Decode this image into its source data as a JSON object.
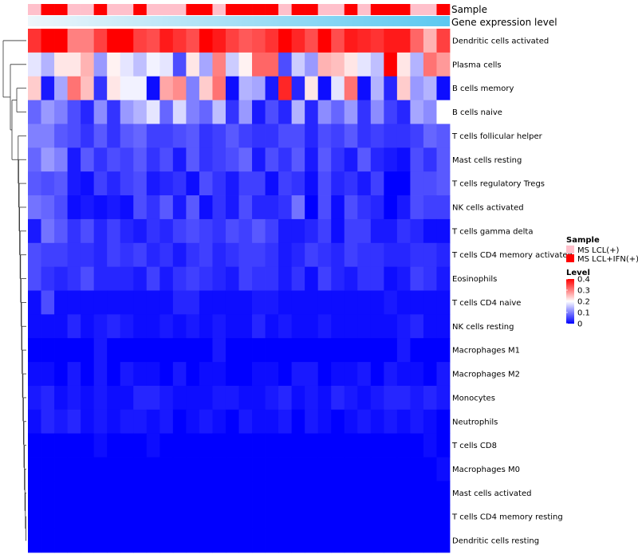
{
  "chart_data": {
    "type": "heatmap",
    "title": "",
    "annotation_labels": [
      "Sample",
      "Gene expression level"
    ],
    "rows": [
      "Dendritic cells activated",
      "Plasma cells",
      "B cells memory",
      "B cells naive",
      "T cells follicular helper",
      "Mast cells resting",
      "T cells regulatory  Tregs",
      "NK cells activated",
      "T cells gamma delta",
      "T cells CD4 memory activated",
      "Eosinophils",
      "T cells CD4 naive",
      "NK cells resting",
      "Macrophages M1",
      "Macrophages M2",
      "Monocytes",
      "Neutrophils",
      "T cells CD8",
      "Macrophages M0",
      "Mast cells activated",
      "T cells CD4 memory resting",
      "Dendritic cells resting"
    ],
    "sample_groups": [
      "lcl",
      "ifn",
      "ifn",
      "lcl",
      "lcl",
      "ifn",
      "lcl",
      "lcl",
      "ifn",
      "lcl",
      "lcl",
      "lcl",
      "ifn",
      "ifn",
      "lcl",
      "ifn",
      "ifn",
      "ifn",
      "ifn",
      "lcl",
      "ifn",
      "ifn",
      "lcl",
      "lcl",
      "ifn",
      "lcl",
      "ifn",
      "ifn",
      "ifn",
      "lcl",
      "lcl",
      "ifn"
    ],
    "values": [
      [
        0.36,
        0.4,
        0.4,
        0.3,
        0.3,
        0.35,
        0.4,
        0.4,
        0.35,
        0.34,
        0.38,
        0.36,
        0.34,
        0.4,
        0.38,
        0.35,
        0.33,
        0.34,
        0.36,
        0.4,
        0.37,
        0.34,
        0.4,
        0.34,
        0.38,
        0.37,
        0.36,
        0.38,
        0.38,
        0.32,
        0.26,
        0.35
      ],
      [
        0.18,
        0.14,
        0.22,
        0.22,
        0.26,
        0.12,
        0.21,
        0.18,
        0.15,
        0.19,
        0.18,
        0.06,
        0.22,
        0.13,
        0.3,
        0.16,
        0.21,
        0.32,
        0.32,
        0.06,
        0.16,
        0.12,
        0.26,
        0.25,
        0.22,
        0.18,
        0.15,
        0.4,
        0.22,
        0.14,
        0.31,
        0.28
      ],
      [
        0.24,
        0.02,
        0.13,
        0.31,
        0.25,
        0.04,
        0.22,
        0.19,
        0.19,
        0.01,
        0.27,
        0.29,
        0.1,
        0.24,
        0.31,
        0.01,
        0.14,
        0.13,
        0.02,
        0.37,
        0.03,
        0.22,
        0.01,
        0.18,
        0.31,
        0.01,
        0.14,
        0.03,
        0.24,
        0.12,
        0.14,
        0.01
      ],
      [
        0.08,
        0.12,
        0.1,
        0.06,
        0.03,
        0.11,
        0.04,
        0.12,
        0.14,
        0.18,
        0.08,
        0.17,
        0.1,
        0.08,
        0.15,
        0.04,
        0.12,
        0.02,
        0.06,
        0.03,
        0.14,
        0.03,
        0.11,
        0.08,
        0.12,
        0.04,
        0.11,
        0.05,
        0.03,
        0.13,
        0.11,
        0.2
      ],
      [
        0.1,
        0.1,
        0.07,
        0.06,
        0.04,
        0.07,
        0.04,
        0.07,
        0.08,
        0.05,
        0.05,
        0.06,
        0.07,
        0.04,
        0.05,
        0.07,
        0.05,
        0.04,
        0.04,
        0.06,
        0.06,
        0.03,
        0.06,
        0.05,
        0.07,
        0.04,
        0.05,
        0.04,
        0.04,
        0.05,
        0.08,
        0.07
      ],
      [
        0.08,
        0.12,
        0.1,
        0.02,
        0.07,
        0.04,
        0.06,
        0.05,
        0.07,
        0.04,
        0.06,
        0.02,
        0.07,
        0.04,
        0.05,
        0.06,
        0.08,
        0.02,
        0.06,
        0.04,
        0.07,
        0.02,
        0.07,
        0.04,
        0.02,
        0.07,
        0.03,
        0.02,
        0.01,
        0.06,
        0.04,
        0.07
      ],
      [
        0.07,
        0.06,
        0.07,
        0.02,
        0.01,
        0.05,
        0.03,
        0.05,
        0.06,
        0.02,
        0.03,
        0.04,
        0.01,
        0.06,
        0.04,
        0.02,
        0.05,
        0.05,
        0.01,
        0.05,
        0.04,
        0.01,
        0.06,
        0.03,
        0.04,
        0.02,
        0.05,
        0.0,
        0.0,
        0.06,
        0.06,
        0.07
      ],
      [
        0.09,
        0.08,
        0.06,
        0.01,
        0.02,
        0.01,
        0.02,
        0.01,
        0.06,
        0.04,
        0.07,
        0.02,
        0.07,
        0.01,
        0.04,
        0.02,
        0.06,
        0.03,
        0.03,
        0.04,
        0.09,
        0.0,
        0.06,
        0.01,
        0.06,
        0.04,
        0.03,
        0.0,
        0.02,
        0.06,
        0.05,
        0.05
      ],
      [
        0.02,
        0.09,
        0.07,
        0.04,
        0.06,
        0.03,
        0.05,
        0.03,
        0.02,
        0.04,
        0.03,
        0.05,
        0.06,
        0.05,
        0.04,
        0.06,
        0.05,
        0.07,
        0.05,
        0.02,
        0.02,
        0.03,
        0.05,
        0.01,
        0.05,
        0.05,
        0.02,
        0.02,
        0.04,
        0.03,
        0.01,
        0.01
      ],
      [
        0.06,
        0.05,
        0.05,
        0.04,
        0.04,
        0.03,
        0.05,
        0.04,
        0.05,
        0.03,
        0.04,
        0.02,
        0.04,
        0.05,
        0.03,
        0.04,
        0.05,
        0.05,
        0.04,
        0.02,
        0.03,
        0.05,
        0.04,
        0.03,
        0.05,
        0.04,
        0.04,
        0.03,
        0.03,
        0.04,
        0.04,
        0.03
      ],
      [
        0.06,
        0.04,
        0.03,
        0.04,
        0.06,
        0.03,
        0.03,
        0.03,
        0.02,
        0.05,
        0.02,
        0.04,
        0.05,
        0.04,
        0.03,
        0.02,
        0.05,
        0.04,
        0.04,
        0.02,
        0.04,
        0.01,
        0.05,
        0.03,
        0.02,
        0.04,
        0.04,
        0.01,
        0.02,
        0.05,
        0.04,
        0.02
      ],
      [
        0.01,
        0.06,
        0.01,
        0.01,
        0.01,
        0.01,
        0.01,
        0.01,
        0.01,
        0.01,
        0.01,
        0.03,
        0.03,
        0.01,
        0.01,
        0.01,
        0.01,
        0.02,
        0.02,
        0.01,
        0.01,
        0.01,
        0.01,
        0.01,
        0.01,
        0.01,
        0.01,
        0.02,
        0.01,
        0.01,
        0.01,
        0.01
      ],
      [
        0.01,
        0.01,
        0.01,
        0.03,
        0.01,
        0.02,
        0.03,
        0.02,
        0.01,
        0.01,
        0.02,
        0.01,
        0.02,
        0.01,
        0.02,
        0.01,
        0.01,
        0.03,
        0.01,
        0.02,
        0.01,
        0.01,
        0.02,
        0.01,
        0.01,
        0.01,
        0.01,
        0.01,
        0.02,
        0.03,
        0.01,
        0.01
      ],
      [
        0.0,
        0.0,
        0.0,
        0.0,
        0.0,
        0.02,
        0.0,
        0.0,
        0.0,
        0.0,
        0.0,
        0.0,
        0.0,
        0.0,
        0.02,
        0.0,
        0.0,
        0.0,
        0.0,
        0.0,
        0.0,
        0.0,
        0.0,
        0.0,
        0.0,
        0.0,
        0.0,
        0.0,
        0.02,
        0.0,
        0.0,
        0.0
      ],
      [
        0.01,
        0.01,
        0.0,
        0.02,
        0.0,
        0.02,
        0.0,
        0.02,
        0.01,
        0.01,
        0.0,
        0.02,
        0.0,
        0.01,
        0.01,
        0.0,
        0.0,
        0.01,
        0.01,
        0.0,
        0.02,
        0.02,
        0.0,
        0.01,
        0.01,
        0.02,
        0.0,
        0.02,
        0.01,
        0.01,
        0.0,
        0.02
      ],
      [
        0.02,
        0.03,
        0.01,
        0.02,
        0.01,
        0.02,
        0.01,
        0.01,
        0.03,
        0.03,
        0.02,
        0.01,
        0.01,
        0.01,
        0.02,
        0.02,
        0.01,
        0.01,
        0.02,
        0.03,
        0.01,
        0.02,
        0.01,
        0.03,
        0.02,
        0.01,
        0.02,
        0.03,
        0.03,
        0.02,
        0.03,
        0.02
      ],
      [
        0.01,
        0.03,
        0.02,
        0.03,
        0.01,
        0.02,
        0.01,
        0.02,
        0.02,
        0.01,
        0.02,
        0.0,
        0.01,
        0.02,
        0.01,
        0.0,
        0.02,
        0.01,
        0.01,
        0.02,
        0.0,
        0.02,
        0.01,
        0.0,
        0.01,
        0.02,
        0.01,
        0.02,
        0.01,
        0.02,
        0.01,
        0.0
      ],
      [
        0.0,
        0.0,
        0.0,
        0.0,
        0.0,
        0.01,
        0.0,
        0.0,
        0.0,
        0.01,
        0.0,
        0.0,
        0.0,
        0.0,
        0.0,
        0.0,
        0.0,
        0.0,
        0.0,
        0.0,
        0.0,
        0.0,
        0.0,
        0.0,
        0.0,
        0.0,
        0.0,
        0.0,
        0.0,
        0.0,
        0.01,
        0.0
      ],
      [
        0.0,
        0.0,
        0.0,
        0.0,
        0.0,
        0.0,
        0.0,
        0.0,
        0.0,
        0.0,
        0.0,
        0.0,
        0.0,
        0.0,
        0.0,
        0.0,
        0.0,
        0.0,
        0.0,
        0.0,
        0.0,
        0.0,
        0.0,
        0.0,
        0.0,
        0.0,
        0.0,
        0.0,
        0.0,
        0.0,
        0.0,
        0.01
      ],
      [
        0.0,
        0.0,
        0.0,
        0.0,
        0.0,
        0.0,
        0.0,
        0.0,
        0.0,
        0.0,
        0.0,
        0.0,
        0.0,
        0.0,
        0.0,
        0.0,
        0.0,
        0.0,
        0.0,
        0.0,
        0.0,
        0.0,
        0.0,
        0.0,
        0.0,
        0.0,
        0.0,
        0.0,
        0.0,
        0.0,
        0.0,
        0.0
      ],
      [
        0.0,
        0.0,
        0.0,
        0.0,
        0.0,
        0.0,
        0.0,
        0.0,
        0.0,
        0.0,
        0.0,
        0.0,
        0.0,
        0.0,
        0.0,
        0.0,
        0.0,
        0.0,
        0.0,
        0.0,
        0.0,
        0.0,
        0.0,
        0.0,
        0.0,
        0.0,
        0.0,
        0.0,
        0.0,
        0.0,
        0.0,
        0.0
      ],
      [
        0.0,
        0.0,
        0.0,
        0.0,
        0.0,
        0.0,
        0.0,
        0.0,
        0.0,
        0.0,
        0.0,
        0.0,
        0.0,
        0.0,
        0.0,
        0.0,
        0.0,
        0.0,
        0.0,
        0.0,
        0.0,
        0.0,
        0.0,
        0.0,
        0.0,
        0.0,
        0.0,
        0.0,
        0.0,
        0.0,
        0.0,
        0.0
      ]
    ],
    "color_scale": {
      "min": 0,
      "max": 0.4,
      "colors": [
        "#0000ff",
        "#ffffff",
        "#ff0000"
      ]
    },
    "legends": {
      "sample": {
        "title": "Sample",
        "items": [
          {
            "label": "MS LCL(+)",
            "color": "#ffc0cb"
          },
          {
            "label": "MS LCL+IFN(+)",
            "color": "#ff0000"
          }
        ]
      },
      "level": {
        "title": "Level",
        "ticks": [
          0.4,
          0.3,
          0.2,
          0.1,
          0
        ],
        "tick_labels": [
          "0.4",
          "0.3",
          "0.2",
          "0.1",
          "0"
        ]
      }
    },
    "gene_expression_color": "#5bc8f0"
  }
}
